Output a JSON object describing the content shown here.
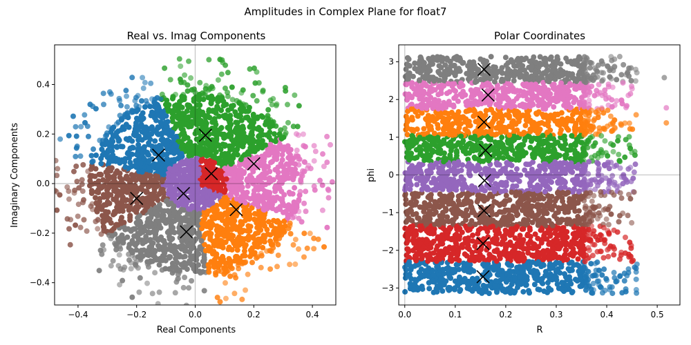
{
  "figure": {
    "title": "Amplitudes in Complex Plane for float7"
  },
  "colors": {
    "blue": "#1f77b4",
    "orange": "#ff7f0e",
    "green": "#2ca02c",
    "red": "#d62728",
    "purple": "#9467bd",
    "brown": "#8c564b",
    "pink": "#e377c2",
    "gray": "#7f7f7f"
  },
  "chart_data": [
    {
      "type": "scatter",
      "title": "Real vs. Imag Components",
      "xlabel": "Real Components",
      "ylabel": "Imaginary Components",
      "xlim": [
        -0.48,
        0.48
      ],
      "ylim": [
        -0.49,
        0.56
      ],
      "xticks": [
        -0.4,
        -0.2,
        0.0,
        0.2,
        0.4
      ],
      "xtick_labels": [
        "−0.4",
        "−0.2",
        "0.0",
        "0.2",
        "0.4"
      ],
      "yticks": [
        -0.4,
        -0.2,
        0.0,
        0.2,
        0.4
      ],
      "ytick_labels": [
        "−0.4",
        "−0.2",
        "0.0",
        "0.2",
        "0.4"
      ],
      "reference_lines": {
        "x": 0,
        "y": 0
      },
      "clusters": [
        {
          "color": "blue",
          "centroid": [
            -0.125,
            0.115
          ],
          "phi_range": [
            1.9,
            2.9
          ]
        },
        {
          "color": "green",
          "centroid": [
            0.035,
            0.195
          ],
          "phi_range": [
            0.55,
            1.9
          ]
        },
        {
          "color": "pink",
          "centroid": [
            0.2,
            0.08
          ],
          "phi_range": [
            -0.45,
            0.55
          ]
        },
        {
          "color": "red",
          "centroid": [
            0.055,
            0.04
          ],
          "phi_range": [
            -0.45,
            1.9
          ]
        },
        {
          "color": "purple",
          "centroid": [
            -0.04,
            -0.04
          ],
          "phi_range": [
            -3.14,
            3.14
          ]
        },
        {
          "color": "orange",
          "centroid": [
            0.14,
            -0.105
          ],
          "phi_range": [
            -1.45,
            -0.45
          ]
        },
        {
          "color": "gray",
          "centroid": [
            -0.03,
            -0.195
          ],
          "phi_range": [
            -2.55,
            -1.45
          ]
        },
        {
          "color": "brown",
          "centroid": [
            -0.2,
            -0.06
          ],
          "phi_range": [
            -3.5,
            -2.55
          ]
        }
      ]
    },
    {
      "type": "scatter",
      "title": "Polar Coordinates",
      "xlabel": "R",
      "ylabel": "phi",
      "xlim": [
        -0.012,
        0.545
      ],
      "ylim": [
        -3.45,
        3.45
      ],
      "xticks": [
        0.0,
        0.1,
        0.2,
        0.3,
        0.4,
        0.5
      ],
      "xtick_labels": [
        "0.0",
        "0.1",
        "0.2",
        "0.3",
        "0.4",
        "0.5"
      ],
      "yticks": [
        -3,
        -2,
        -1,
        0,
        1,
        2,
        3
      ],
      "ytick_labels": [
        "−3",
        "−2",
        "−1",
        "0",
        "1",
        "2",
        "3"
      ],
      "reference_lines": {
        "x": 0,
        "y": 0
      },
      "bands": [
        {
          "color": "gray",
          "phi_range": [
            2.45,
            3.14
          ],
          "centroid": [
            0.157,
            2.8
          ]
        },
        {
          "color": "pink",
          "phi_range": [
            1.75,
            2.45
          ],
          "centroid": [
            0.165,
            2.12
          ]
        },
        {
          "color": "orange",
          "phi_range": [
            1.05,
            1.75
          ],
          "centroid": [
            0.157,
            1.4
          ]
        },
        {
          "color": "green",
          "phi_range": [
            0.35,
            1.05
          ],
          "centroid": [
            0.16,
            0.65
          ]
        },
        {
          "color": "purple",
          "phi_range": [
            -0.45,
            0.35
          ],
          "centroid": [
            0.158,
            -0.15
          ]
        },
        {
          "color": "brown",
          "phi_range": [
            -1.35,
            -0.45
          ],
          "centroid": [
            0.157,
            -0.95
          ]
        },
        {
          "color": "red",
          "phi_range": [
            -2.3,
            -1.35
          ],
          "centroid": [
            0.155,
            -1.82
          ]
        },
        {
          "color": "blue",
          "phi_range": [
            -3.14,
            -2.3
          ],
          "centroid": [
            0.155,
            -2.7
          ]
        }
      ]
    }
  ]
}
